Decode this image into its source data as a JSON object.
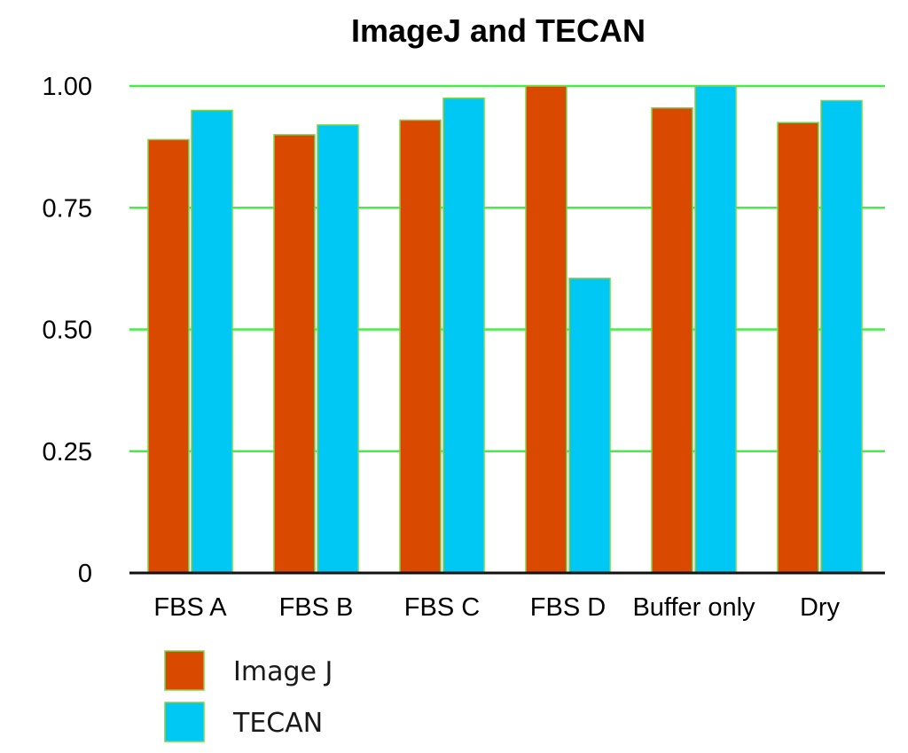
{
  "chart_data": {
    "type": "bar",
    "title": "ImageJ and TECAN",
    "xlabel": "",
    "ylabel": "",
    "categories": [
      "FBS A",
      "FBS B",
      "FBS C",
      "FBS D",
      "Buffer only",
      "Dry"
    ],
    "series": [
      {
        "name": "Image J",
        "color": "#d94a00",
        "values": [
          0.89,
          0.9,
          0.93,
          1.0,
          0.955,
          0.925
        ]
      },
      {
        "name": "TECAN",
        "color": "#00c8f5",
        "values": [
          0.95,
          0.92,
          0.975,
          0.605,
          1.0,
          0.97
        ]
      }
    ],
    "ylim": [
      0,
      1.0
    ],
    "yticks": [
      0,
      0.25,
      0.5,
      0.75,
      1.0
    ],
    "ytick_labels": [
      "0",
      "0.25",
      "0.50",
      "0.75",
      "1.00"
    ],
    "grid": true,
    "grid_color": "#44ee44",
    "bar_outline_color": "#7bd34a",
    "legend_position": "bottom-left"
  }
}
